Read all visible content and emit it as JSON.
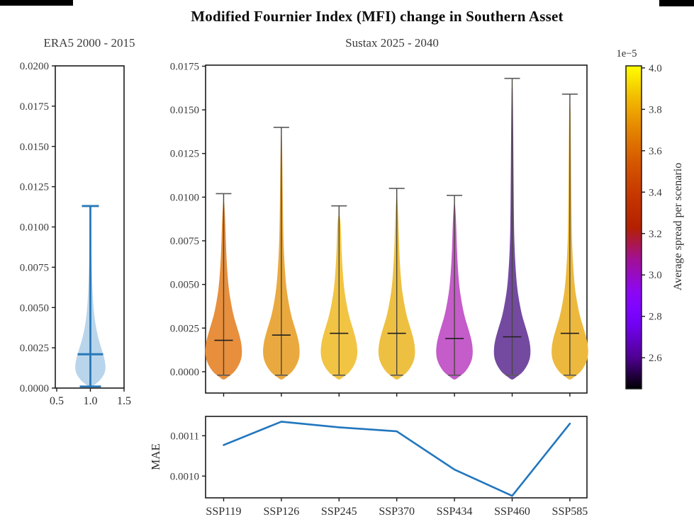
{
  "title": "Modified Fournier Index (MFI) change in Southern Asset",
  "chart_data": [
    {
      "id": "era5",
      "type": "violin",
      "title": "ERA5 2000 - 2015",
      "ylim": [
        0.0,
        0.02
      ],
      "y_ticks": [
        "0.0000",
        "0.0025",
        "0.0050",
        "0.0075",
        "0.0100",
        "0.0125",
        "0.0150",
        "0.0175",
        "0.0200"
      ],
      "x_ticks": [
        "0.5",
        "1.0",
        "1.5"
      ],
      "grid": false,
      "profile": [
        [
          0.0002,
          5
        ],
        [
          0.0004,
          12
        ],
        [
          0.0008,
          19
        ],
        [
          0.0012,
          21.8
        ],
        [
          0.0017,
          20.5
        ],
        [
          0.0022,
          17.5
        ],
        [
          0.0028,
          13
        ],
        [
          0.0035,
          9
        ],
        [
          0.0043,
          6
        ],
        [
          0.0052,
          4
        ],
        [
          0.0065,
          2.6
        ],
        [
          0.008,
          1.6
        ],
        [
          0.01,
          1.0
        ]
      ],
      "series": [
        {
          "position": 1.0,
          "fill_color": "#b9d5eb",
          "line_color": "#2878b8",
          "median": 0.0021,
          "whisker_low": 0.0001,
          "whisker_high": 0.0113,
          "fill_top": 0.0106
        }
      ]
    },
    {
      "id": "sustax",
      "type": "violin",
      "title": "Sustax 2025 - 2040",
      "ylim": [
        -0.00122,
        0.01756
      ],
      "y_ticks": [
        "0.0000",
        "0.0025",
        "0.0050",
        "0.0075",
        "0.0100",
        "0.0125",
        "0.0150",
        "0.0175"
      ],
      "grid": false,
      "profile": [
        [
          -0.0003,
          6
        ],
        [
          -0.0001,
          13
        ],
        [
          0.0002,
          19
        ],
        [
          0.0006,
          24
        ],
        [
          0.001,
          26
        ],
        [
          0.0015,
          25.5
        ],
        [
          0.002,
          23
        ],
        [
          0.0026,
          18.5
        ],
        [
          0.0032,
          14
        ],
        [
          0.004,
          10
        ],
        [
          0.0048,
          7
        ],
        [
          0.0058,
          5
        ],
        [
          0.007,
          3.4
        ],
        [
          0.0085,
          2.4
        ]
      ],
      "violins": [
        {
          "label": "SSP119",
          "color": "#e78f3d",
          "median": 0.0018,
          "whisker_low": -0.0002,
          "whisker_high": 0.0102
        },
        {
          "label": "SSP126",
          "color": "#eaa93f",
          "median": 0.0021,
          "whisker_low": -0.0002,
          "whisker_high": 0.014
        },
        {
          "label": "SSP245",
          "color": "#f1c444",
          "median": 0.0022,
          "whisker_low": -0.0002,
          "whisker_high": 0.0095
        },
        {
          "label": "SSP370",
          "color": "#eec042",
          "median": 0.0022,
          "whisker_low": -0.0002,
          "whisker_high": 0.0105
        },
        {
          "label": "SSP434",
          "color": "#c45cc9",
          "median": 0.0019,
          "whisker_low": -0.0002,
          "whisker_high": 0.0101
        },
        {
          "label": "SSP460",
          "color": "#744aa0",
          "median": 0.002,
          "whisker_low": -0.0002,
          "whisker_high": 0.0168
        },
        {
          "label": "SSP585",
          "color": "#ecb93e",
          "median": 0.0022,
          "whisker_low": -0.0002,
          "whisker_high": 0.0159
        }
      ]
    },
    {
      "id": "colorbar",
      "type": "colorbar",
      "label": "Average spread per scenario",
      "offset_label": "1e−5",
      "ticks": [
        "2.6",
        "2.8",
        "3.0",
        "3.2",
        "3.4",
        "3.6",
        "3.8",
        "4.0"
      ],
      "range": [
        2.45,
        4.01
      ],
      "gradient": [
        [
          "0",
          "#000000"
        ],
        [
          "0.1",
          "#510096"
        ],
        [
          "0.2",
          "#7202f3"
        ],
        [
          "0.25",
          "#7f04ff"
        ],
        [
          "0.3",
          "#8c07f3"
        ],
        [
          "0.4",
          "#a11096"
        ],
        [
          "0.5",
          "#b42000"
        ],
        [
          "0.6",
          "#c63700"
        ],
        [
          "0.7",
          "#d55700"
        ],
        [
          "0.8",
          "#e48300"
        ],
        [
          "0.9",
          "#f2ba00"
        ],
        [
          "1",
          "#ffff00"
        ]
      ]
    },
    {
      "id": "mae",
      "type": "line",
      "ylabel": "MAE",
      "categories": [
        "SSP119",
        "SSP126",
        "SSP245",
        "SSP370",
        "SSP434",
        "SSP460",
        "SSP585"
      ],
      "values": [
        0.001077,
        0.001135,
        0.001121,
        0.001111,
        0.001016,
        0.000951,
        0.00113
      ],
      "y_ticks": [
        "0.0010",
        "0.0011"
      ],
      "ylim": [
        0.000946,
        0.001148
      ],
      "line_color": "#2176bd",
      "grid": false,
      "legend": "none"
    }
  ]
}
